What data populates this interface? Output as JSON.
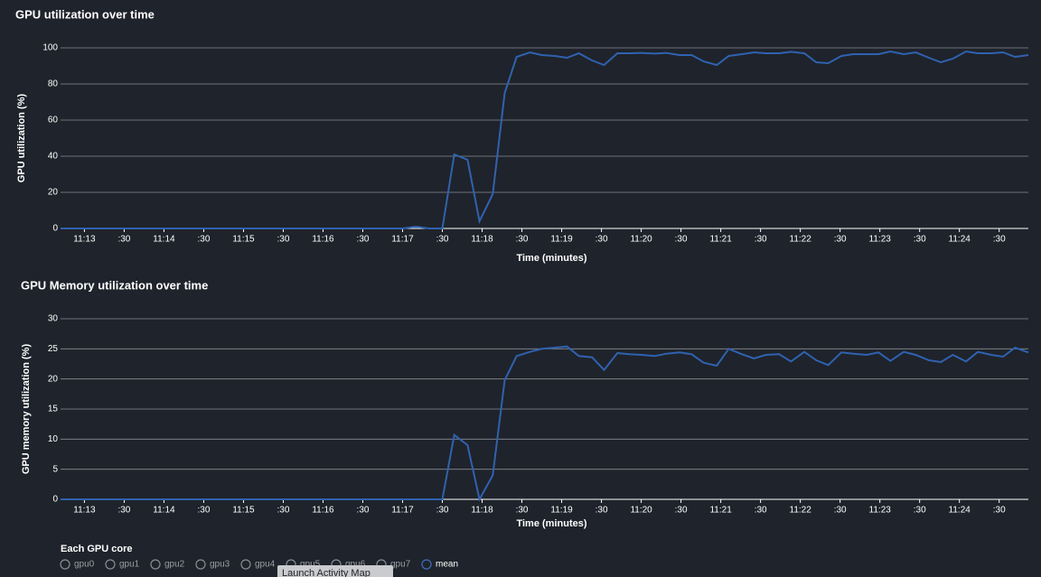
{
  "chart_data": [
    {
      "type": "line",
      "title": "GPU utilization over time",
      "x_label": "Time (minutes)",
      "y_label": "GPU utilization (%)",
      "x": [
        "11:12:42",
        "11:13:00",
        "11:13:30",
        "11:14:00",
        "11:14:30",
        "11:15:00",
        "11:15:30",
        "11:16:00",
        "11:16:30",
        "11:17:00",
        "11:17:10",
        "11:17:20",
        "11:17:30",
        "11:17:39",
        "11:17:49",
        "11:17:58",
        "11:18:08",
        "11:18:17",
        "11:18:26",
        "11:18:36",
        "11:18:45",
        "11:18:55",
        "11:19:04",
        "11:19:13",
        "11:19:23",
        "11:19:32",
        "11:19:42",
        "11:19:51",
        "11:20:00",
        "11:20:10",
        "11:20:19",
        "11:20:29",
        "11:20:38",
        "11:20:47",
        "11:20:57",
        "11:21:06",
        "11:21:16",
        "11:21:25",
        "11:21:34",
        "11:21:44",
        "11:21:53",
        "11:22:03",
        "11:22:12",
        "11:22:21",
        "11:22:31",
        "11:22:40",
        "11:22:50",
        "11:22:59",
        "11:23:08",
        "11:23:18",
        "11:23:27",
        "11:23:37",
        "11:23:46",
        "11:23:55",
        "11:24:05",
        "11:24:14",
        "11:24:24",
        "11:24:33",
        "11:24:42",
        "11:24:52"
      ],
      "series": [
        {
          "color": "#2f62b0",
          "values": [
            0,
            0,
            0,
            0,
            0,
            0,
            0,
            0,
            0,
            0,
            1,
            0,
            0,
            41,
            38,
            4,
            19,
            75,
            95,
            97.5,
            96,
            95.5,
            94.5,
            97,
            93,
            90.5,
            97,
            97,
            97.2,
            96.8,
            97.2,
            96,
            96,
            92.5,
            90.5,
            95.5,
            96.5,
            97.5,
            97,
            97,
            97.8,
            97,
            92,
            91.5,
            95.5,
            96.5,
            96.5,
            96.5,
            98,
            96.5,
            97.5,
            94.5,
            92,
            94,
            98,
            97,
            97,
            97.5,
            95,
            96
          ]
        }
      ],
      "xlim": [
        "11:12:42",
        "11:24:52"
      ],
      "xticks": [
        {
          "value": "11:13:00",
          "label": "11:13"
        },
        {
          "value": "11:13:30",
          "label": ":30"
        },
        {
          "value": "11:14:00",
          "label": "11:14"
        },
        {
          "value": "11:14:30",
          "label": ":30"
        },
        {
          "value": "11:15:00",
          "label": "11:15"
        },
        {
          "value": "11:15:30",
          "label": ":30"
        },
        {
          "value": "11:16:00",
          "label": "11:16"
        },
        {
          "value": "11:16:30",
          "label": ":30"
        },
        {
          "value": "11:17:00",
          "label": "11:17"
        },
        {
          "value": "11:17:30",
          "label": ":30"
        },
        {
          "value": "11:18:00",
          "label": "11:18"
        },
        {
          "value": "11:18:30",
          "label": ":30"
        },
        {
          "value": "11:19:00",
          "label": "11:19"
        },
        {
          "value": "11:19:30",
          "label": ":30"
        },
        {
          "value": "11:20:00",
          "label": "11:20"
        },
        {
          "value": "11:20:30",
          "label": ":30"
        },
        {
          "value": "11:21:00",
          "label": "11:21"
        },
        {
          "value": "11:21:30",
          "label": ":30"
        },
        {
          "value": "11:22:00",
          "label": "11:22"
        },
        {
          "value": "11:22:30",
          "label": ":30"
        },
        {
          "value": "11:23:00",
          "label": "11:23"
        },
        {
          "value": "11:23:30",
          "label": ":30"
        },
        {
          "value": "11:24:00",
          "label": "11:24"
        },
        {
          "value": "11:24:30",
          "label": ":30"
        }
      ],
      "ylim": [
        0,
        100
      ],
      "yticks": [
        0,
        20,
        40,
        60,
        80,
        100
      ],
      "grid": true
    },
    {
      "type": "line",
      "title": "GPU Memory utilization over time",
      "x_label": "Time (minutes)",
      "y_label": "GPU memory utilization (%)",
      "x": [
        "11:12:42",
        "11:13:00",
        "11:13:30",
        "11:14:00",
        "11:14:30",
        "11:15:00",
        "11:15:30",
        "11:16:00",
        "11:16:30",
        "11:17:00",
        "11:17:10",
        "11:17:20",
        "11:17:30",
        "11:17:39",
        "11:17:49",
        "11:17:58",
        "11:18:08",
        "11:18:17",
        "11:18:26",
        "11:18:36",
        "11:18:45",
        "11:18:55",
        "11:19:04",
        "11:19:13",
        "11:19:23",
        "11:19:32",
        "11:19:42",
        "11:19:51",
        "11:20:00",
        "11:20:10",
        "11:20:19",
        "11:20:29",
        "11:20:38",
        "11:20:47",
        "11:20:57",
        "11:21:06",
        "11:21:16",
        "11:21:25",
        "11:21:34",
        "11:21:44",
        "11:21:53",
        "11:22:03",
        "11:22:12",
        "11:22:21",
        "11:22:31",
        "11:22:40",
        "11:22:50",
        "11:22:59",
        "11:23:08",
        "11:23:18",
        "11:23:27",
        "11:23:37",
        "11:23:46",
        "11:23:55",
        "11:24:05",
        "11:24:14",
        "11:24:24",
        "11:24:33",
        "11:24:42",
        "11:24:52"
      ],
      "series": [
        {
          "color": "#2f62b0",
          "values": [
            0,
            0,
            0,
            0,
            0,
            0,
            0,
            0,
            0,
            0,
            0,
            0,
            0,
            10.7,
            9,
            0,
            4,
            19.8,
            23.8,
            24.5,
            25,
            25.2,
            25.4,
            23.8,
            23.6,
            21.5,
            24.3,
            24.1,
            24,
            23.8,
            24.2,
            24.4,
            24.1,
            22.7,
            22.2,
            25,
            24.1,
            23.4,
            24,
            24.1,
            22.9,
            24.5,
            23.1,
            22.3,
            24.4,
            24.2,
            24,
            24.4,
            23,
            24.5,
            24,
            23.1,
            22.8,
            24,
            22.9,
            24.5,
            24,
            23.7,
            25.2,
            24.4
          ]
        }
      ],
      "xlim": [
        "11:12:42",
        "11:24:52"
      ],
      "xticks": [
        {
          "value": "11:13:00",
          "label": "11:13"
        },
        {
          "value": "11:13:30",
          "label": ":30"
        },
        {
          "value": "11:14:00",
          "label": "11:14"
        },
        {
          "value": "11:14:30",
          "label": ":30"
        },
        {
          "value": "11:15:00",
          "label": "11:15"
        },
        {
          "value": "11:15:30",
          "label": ":30"
        },
        {
          "value": "11:16:00",
          "label": "11:16"
        },
        {
          "value": "11:16:30",
          "label": ":30"
        },
        {
          "value": "11:17:00",
          "label": "11:17"
        },
        {
          "value": "11:17:30",
          "label": ":30"
        },
        {
          "value": "11:18:00",
          "label": "11:18"
        },
        {
          "value": "11:18:30",
          "label": ":30"
        },
        {
          "value": "11:19:00",
          "label": "11:19"
        },
        {
          "value": "11:19:30",
          "label": ":30"
        },
        {
          "value": "11:20:00",
          "label": "11:20"
        },
        {
          "value": "11:20:30",
          "label": ":30"
        },
        {
          "value": "11:21:00",
          "label": "11:21"
        },
        {
          "value": "11:21:30",
          "label": ":30"
        },
        {
          "value": "11:22:00",
          "label": "11:22"
        },
        {
          "value": "11:22:30",
          "label": ":30"
        },
        {
          "value": "11:23:00",
          "label": "11:23"
        },
        {
          "value": "11:23:30",
          "label": ":30"
        },
        {
          "value": "11:24:00",
          "label": "11:24"
        },
        {
          "value": "11:24:30",
          "label": ":30"
        }
      ],
      "ylim": [
        0,
        30
      ],
      "yticks": [
        0,
        5,
        10,
        15,
        20,
        25,
        30
      ],
      "grid": true
    }
  ],
  "legend": {
    "title": "Each GPU core",
    "items": [
      "gpu0",
      "gpu1",
      "gpu2",
      "gpu3",
      "gpu4",
      "gpu5",
      "gpu6",
      "gpu7",
      "mean"
    ],
    "selected": 8
  },
  "button": {
    "label": "Launch Activity Map"
  }
}
